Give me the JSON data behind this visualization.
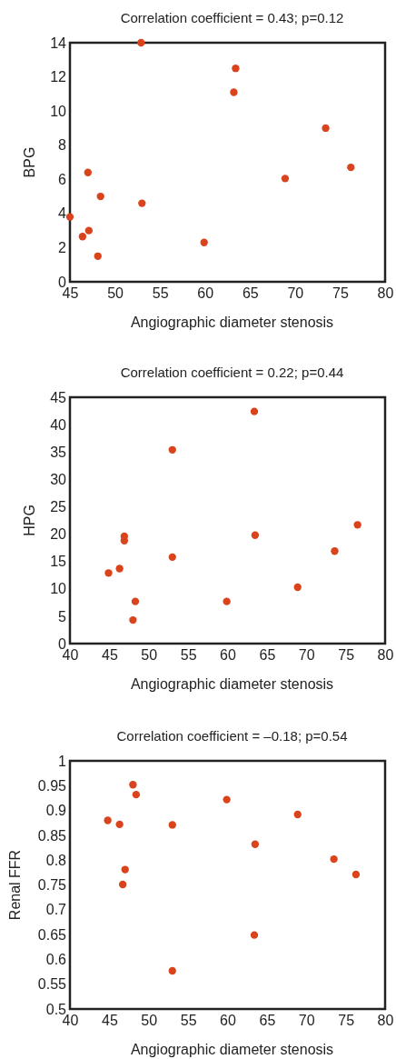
{
  "chart_data": [
    {
      "type": "scatter",
      "title": "Correlation coefficient = 0.43; p=0.12",
      "xlabel": "Angiographic diameter stenosis",
      "ylabel": "BPG",
      "xlim": [
        45,
        80
      ],
      "xticks": [
        45,
        50,
        55,
        60,
        65,
        70,
        75,
        80
      ],
      "ylim": [
        0,
        14
      ],
      "yticks": [
        0,
        2,
        4,
        6,
        8,
        10,
        12,
        14
      ],
      "grid": false,
      "marker": "circle",
      "series": [
        {
          "color": "#d9441c",
          "x": [
            52.9,
            63.4,
            63.2,
            73.4,
            76.2,
            68.9,
            47.0,
            48.4,
            53.0,
            45.0,
            47.1,
            46.4,
            48.1,
            59.9
          ],
          "values": [
            14,
            12.5,
            11.1,
            9.0,
            6.7,
            6.05,
            6.4,
            5.0,
            4.6,
            3.8,
            3.0,
            2.65,
            1.5,
            2.3
          ]
        }
      ]
    },
    {
      "type": "scatter",
      "title": "Correlation coefficient = 0.22; p=0.44",
      "xlabel": "Angiographic diameter stenosis",
      "ylabel": "HPG",
      "xlim": [
        40,
        80
      ],
      "xticks": [
        40,
        45,
        50,
        55,
        60,
        65,
        70,
        75,
        80
      ],
      "ylim": [
        0,
        45
      ],
      "yticks": [
        0,
        5,
        10,
        15,
        20,
        25,
        30,
        35,
        40,
        45
      ],
      "grid": false,
      "marker": "circle",
      "series": [
        {
          "color": "#d9441c",
          "x": [
            63.4,
            53.0,
            76.5,
            63.5,
            46.9,
            46.9,
            53.0,
            73.6,
            46.3,
            44.9,
            68.9,
            48.3,
            59.9,
            48.0
          ],
          "values": [
            42.4,
            35.4,
            21.7,
            19.8,
            19.6,
            18.8,
            15.8,
            16.9,
            13.7,
            12.9,
            10.3,
            7.7,
            7.7,
            4.3
          ]
        }
      ]
    },
    {
      "type": "scatter",
      "title": "Correlation coefficient = –0.18; p=0.54",
      "xlabel": "Angiographic diameter stenosis",
      "ylabel": "Renal FFR",
      "xlim": [
        40,
        80
      ],
      "xticks": [
        40,
        45,
        50,
        55,
        60,
        65,
        70,
        75,
        80
      ],
      "ylim": [
        0.5,
        1
      ],
      "yticks": [
        0.5,
        0.55,
        0.6,
        0.65,
        0.7,
        0.75,
        0.8,
        0.85,
        0.9,
        0.95,
        1
      ],
      "grid": false,
      "marker": "circle",
      "series": [
        {
          "color": "#d9441c",
          "x": [
            48.0,
            48.4,
            59.9,
            68.9,
            44.8,
            46.3,
            53.0,
            63.5,
            73.5,
            47.0,
            76.3,
            46.7,
            63.4,
            53.0
          ],
          "values": [
            0.952,
            0.932,
            0.922,
            0.892,
            0.88,
            0.872,
            0.871,
            0.832,
            0.802,
            0.781,
            0.771,
            0.751,
            0.649,
            0.577
          ]
        }
      ]
    }
  ]
}
